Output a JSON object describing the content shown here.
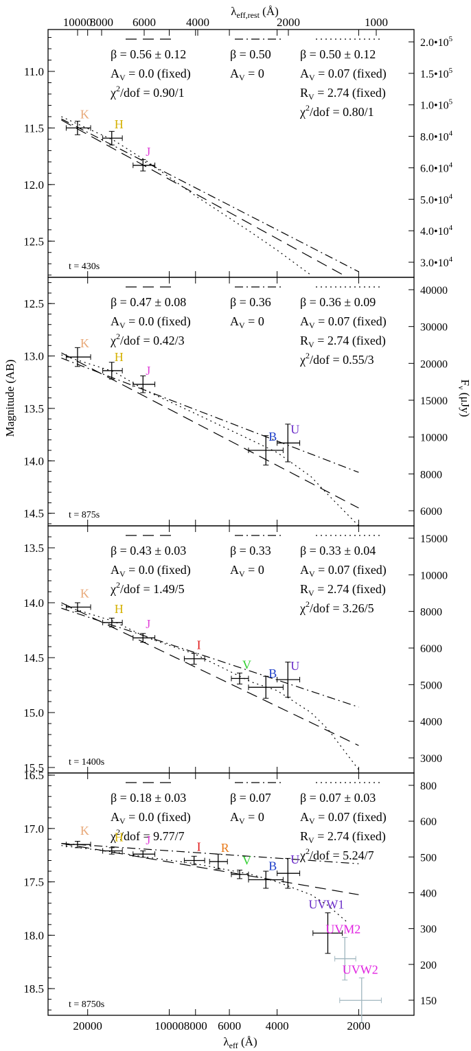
{
  "figure": {
    "top_axis_label": "λ",
    "top_axis_label_sub": "eff,rest",
    "top_axis_label_unit": " (Å)",
    "bottom_axis_label": "λ",
    "bottom_axis_label_sub": "eff",
    "bottom_axis_label_unit": " (Å)",
    "left_axis_label": "Magnitude (AB)",
    "right_axis_label": "F",
    "right_axis_label_sub": "ν",
    "right_axis_label_unit": " (μJy)",
    "top_ticks": [
      "10000",
      "8000",
      "6000",
      "4000",
      "2000",
      "1000"
    ],
    "bottom_ticks": [
      "20000",
      "10000",
      "8000",
      "6000",
      "4000",
      "2000"
    ]
  },
  "chart_data": [
    {
      "type": "scatter",
      "time_label": "t = 430s",
      "ylim": [
        10.63,
        12.82
      ],
      "y_ticks": [
        "11.0",
        "11.5",
        "12.0",
        "12.5"
      ],
      "flux_ticks": [
        "2.0•10",
        "1.5•10",
        "1.0•10",
        "8.0•10",
        "6.0•10",
        "5.0•10",
        "4.0•10",
        "3.0•10"
      ],
      "flux_tick_exp": "5|5|5|4|4|4|4|4",
      "fits": [
        {
          "line": "dashed",
          "beta": "β = 0.56 ± 0.12",
          "av": "A = 0.0 (fixed)",
          "rv": "",
          "chi": "χ/dof = 0.90/1",
          "endpoints": [
            [
              25000,
              11.43
            ],
            [
              2200,
              12.82
            ]
          ]
        },
        {
          "line": "dashdot",
          "beta": "β = 0.50",
          "av": "A = 0",
          "rv": "",
          "chi": "",
          "endpoints": [
            [
              25000,
              11.42
            ],
            [
              2000,
              12.77
            ]
          ]
        },
        {
          "line": "dotted",
          "beta": "β = 0.50 ± 0.12",
          "av": "A = 0.07 (fixed)",
          "rv": "R = 2.74 (fixed)",
          "chi": "χ/dof = 0.80/1",
          "curve": [
            [
              25000,
              11.4
            ],
            [
              16000,
              11.61
            ],
            [
              12000,
              11.8
            ],
            [
              8000,
              12.1
            ],
            [
              5000,
              12.42
            ],
            [
              4000,
              12.58
            ],
            [
              3000,
              12.8
            ]
          ]
        }
      ],
      "points": [
        {
          "band": "K",
          "color": "#e8a878",
          "wl": 21800,
          "wl_err": [
            24000,
            19500
          ],
          "mag": 11.5,
          "mag_err": 0.06
        },
        {
          "band": "H",
          "color": "#d4b000",
          "wl": 16300,
          "wl_err": [
            17600,
            14900
          ],
          "mag": 11.59,
          "mag_err": 0.06
        },
        {
          "band": "J",
          "color": "#e040d8",
          "wl": 12500,
          "wl_err": [
            13600,
            11300
          ],
          "mag": 11.83,
          "mag_err": 0.05
        }
      ]
    },
    {
      "type": "scatter",
      "time_label": "t = 875s",
      "ylim": [
        12.25,
        14.62
      ],
      "y_ticks": [
        "12.5",
        "13.0",
        "13.5",
        "14.0",
        "14.5"
      ],
      "flux_ticks": [
        "40000",
        "30000",
        "20000",
        "15000",
        "10000",
        "8000",
        "6000"
      ],
      "flux_tick_exp": "",
      "fits": [
        {
          "line": "dashed",
          "beta": "β = 0.47 ± 0.08",
          "av": "A = 0.0 (fixed)",
          "rv": "",
          "chi": "χ/dof = 0.42/3",
          "endpoints": [
            [
              25000,
              12.97
            ],
            [
              2000,
              14.45
            ]
          ]
        },
        {
          "line": "dashdot",
          "beta": "β = 0.36",
          "av": "A = 0",
          "rv": "",
          "chi": "",
          "endpoints": [
            [
              25000,
              13.02
            ],
            [
              2000,
              14.11
            ]
          ]
        },
        {
          "line": "dotted",
          "beta": "β = 0.36 ± 0.09",
          "av": "A = 0.07 (fixed)",
          "rv": "R = 2.74 (fixed)",
          "chi": "χ/dof = 0.55/3",
          "curve": [
            [
              25000,
              12.99
            ],
            [
              16000,
              13.15
            ],
            [
              12000,
              13.34
            ],
            [
              8000,
              13.55
            ],
            [
              5000,
              13.8
            ],
            [
              4000,
              13.92
            ],
            [
              3000,
              14.15
            ],
            [
              2600,
              14.32
            ],
            [
              2000,
              14.62
            ]
          ]
        }
      ],
      "points": [
        {
          "band": "K",
          "color": "#e8a878",
          "wl": 21800,
          "wl_err": [
            24000,
            19500
          ],
          "mag": 13.01,
          "mag_err": 0.09
        },
        {
          "band": "H",
          "color": "#d4b000",
          "wl": 16300,
          "wl_err": [
            17600,
            14900
          ],
          "mag": 13.14,
          "mag_err": 0.08
        },
        {
          "band": "J",
          "color": "#e040d8",
          "wl": 12500,
          "wl_err": [
            13600,
            11300
          ],
          "mag": 13.27,
          "mag_err": 0.08
        },
        {
          "band": "B",
          "color": "#1a3cc8",
          "wl": 4400,
          "wl_err": [
            5100,
            3800
          ],
          "mag": 13.9,
          "mag_err": 0.14
        },
        {
          "band": "U",
          "color": "#6a2cc8",
          "wl": 3650,
          "wl_err": [
            4000,
            3300
          ],
          "mag": 13.83,
          "mag_err": 0.18
        }
      ]
    },
    {
      "type": "scatter",
      "time_label": "t = 1400s",
      "ylim": [
        13.3,
        15.55
      ],
      "y_ticks": [
        "13.5",
        "14.0",
        "14.5",
        "15.0",
        "15.5"
      ],
      "flux_ticks": [
        "15000",
        "10000",
        "8000",
        "6000",
        "5000",
        "4000",
        "3000"
      ],
      "flux_tick_exp": "",
      "fits": [
        {
          "line": "dashed",
          "beta": "β = 0.43 ± 0.03",
          "av": "A = 0.0 (fixed)",
          "rv": "",
          "chi": "χ/dof = 1.49/5",
          "endpoints": [
            [
              25000,
              14.0
            ],
            [
              2000,
              15.3
            ]
          ]
        },
        {
          "line": "dashdot",
          "beta": "β = 0.33",
          "av": "A = 0",
          "rv": "",
          "chi": "",
          "endpoints": [
            [
              25000,
              14.05
            ],
            [
              2000,
              14.95
            ]
          ]
        },
        {
          "line": "dotted",
          "beta": "β = 0.33 ± 0.04",
          "av": "A = 0.07 (fixed)",
          "rv": "R = 2.74 (fixed)",
          "chi": "χ/dof = 3.26/5",
          "curve": [
            [
              25000,
              14.02
            ],
            [
              16000,
              14.17
            ],
            [
              12000,
              14.32
            ],
            [
              8000,
              14.47
            ],
            [
              5000,
              14.72
            ],
            [
              4000,
              14.8
            ],
            [
              3000,
              15.0
            ],
            [
              2600,
              15.15
            ],
            [
              2000,
              15.52
            ]
          ]
        }
      ],
      "points": [
        {
          "band": "K",
          "color": "#e8a878",
          "wl": 21800,
          "wl_err": [
            24000,
            19500
          ],
          "mag": 14.04,
          "mag_err": 0.04
        },
        {
          "band": "H",
          "color": "#d4b000",
          "wl": 16300,
          "wl_err": [
            17600,
            14900
          ],
          "mag": 14.18,
          "mag_err": 0.04
        },
        {
          "band": "J",
          "color": "#e040d8",
          "wl": 12500,
          "wl_err": [
            13600,
            11300
          ],
          "mag": 14.32,
          "mag_err": 0.04
        },
        {
          "band": "I",
          "color": "#e01818",
          "wl": 8100,
          "wl_err": [
            8800,
            7400
          ],
          "mag": 14.51,
          "mag_err": 0.05
        },
        {
          "band": "V",
          "color": "#30d030",
          "wl": 5500,
          "wl_err": [
            5900,
            5100
          ],
          "mag": 14.69,
          "mag_err": 0.05
        },
        {
          "band": "B",
          "color": "#1a3cc8",
          "wl": 4400,
          "wl_err": [
            5100,
            3800
          ],
          "mag": 14.77,
          "mag_err": 0.1
        },
        {
          "band": "U",
          "color": "#6a2cc8",
          "wl": 3650,
          "wl_err": [
            4000,
            3300
          ],
          "mag": 14.7,
          "mag_err": 0.16
        }
      ]
    },
    {
      "type": "scatter",
      "time_label": "t = 8750s",
      "ylim": [
        16.48,
        18.75
      ],
      "y_ticks": [
        "16.5",
        "17.0",
        "17.5",
        "18.0",
        "18.5"
      ],
      "flux_ticks": [
        "800",
        "600",
        "500",
        "400",
        "300",
        "200",
        "150"
      ],
      "flux_tick_exp": "",
      "fits": [
        {
          "line": "dashed",
          "beta": "β = 0.18 ± 0.03",
          "av": "A = 0.0 (fixed)",
          "rv": "",
          "chi": "χ/dof = 9.77/7",
          "endpoints": [
            [
              25000,
              17.14
            ],
            [
              2000,
              17.62
            ]
          ]
        },
        {
          "line": "dashdot",
          "beta": "β = 0.07",
          "av": "A = 0",
          "rv": "",
          "chi": "",
          "endpoints": [
            [
              25000,
              17.14
            ],
            [
              2000,
              17.33
            ]
          ]
        },
        {
          "line": "dotted",
          "beta": "β = 0.07 ± 0.03",
          "av": "A = 0.07 (fixed)",
          "rv": "R = 2.74 (fixed)",
          "chi": "χ/dof = 5.24/7",
          "curve": [
            [
              25000,
              17.16
            ],
            [
              16000,
              17.22
            ],
            [
              12000,
              17.27
            ],
            [
              8000,
              17.33
            ],
            [
              5000,
              17.43
            ],
            [
              4000,
              17.5
            ],
            [
              3000,
              17.62
            ],
            [
              2600,
              17.72
            ],
            [
              2200,
              17.88
            ]
          ]
        }
      ],
      "points": [
        {
          "band": "K",
          "color": "#e8a878",
          "wl": 21800,
          "wl_err": [
            24000,
            19500
          ],
          "mag": 17.15,
          "mag_err": 0.03
        },
        {
          "band": "H",
          "color": "#d4b000",
          "wl": 16300,
          "wl_err": [
            17600,
            14900
          ],
          "mag": 17.21,
          "mag_err": 0.03
        },
        {
          "band": "J",
          "color": "#e040d8",
          "wl": 12500,
          "wl_err": [
            13600,
            11300
          ],
          "mag": 17.24,
          "mag_err": 0.03
        },
        {
          "band": "I",
          "color": "#e01818",
          "wl": 8100,
          "wl_err": [
            8800,
            7400
          ],
          "mag": 17.3,
          "mag_err": 0.04
        },
        {
          "band": "R",
          "color": "#e87818",
          "wl": 6600,
          "wl_err": [
            7100,
            6100
          ],
          "mag": 17.31,
          "mag_err": 0.07
        },
        {
          "band": "V",
          "color": "#30d030",
          "wl": 5500,
          "wl_err": [
            5900,
            5100
          ],
          "mag": 17.43,
          "mag_err": 0.04
        },
        {
          "band": "B",
          "color": "#1a3cc8",
          "wl": 4400,
          "wl_err": [
            5100,
            3800
          ],
          "mag": 17.48,
          "mag_err": 0.08
        },
        {
          "band": "U",
          "color": "#6a2cc8",
          "wl": 3650,
          "wl_err": [
            4000,
            3300
          ],
          "mag": 17.42,
          "mag_err": 0.14
        },
        {
          "band": "UVW1",
          "color": "#6a2cc8",
          "wl": 2600,
          "wl_err": [
            2950,
            2300
          ],
          "mag": 17.98,
          "mag_err": 0.19,
          "bar_color": "#000000"
        },
        {
          "band": "UVM2",
          "color": "#e020e0",
          "wl": 2250,
          "wl_err": [
            2450,
            2050
          ],
          "mag": 18.22,
          "mag_err": 0.2,
          "bar_color": "#9fb5be"
        },
        {
          "band": "UVW2",
          "color": "#e020e0",
          "wl": 1950,
          "wl_err": [
            2350,
            1650
          ],
          "mag": 18.61,
          "mag_err": 0.21,
          "bar_color": "#9fb5be"
        }
      ]
    }
  ]
}
